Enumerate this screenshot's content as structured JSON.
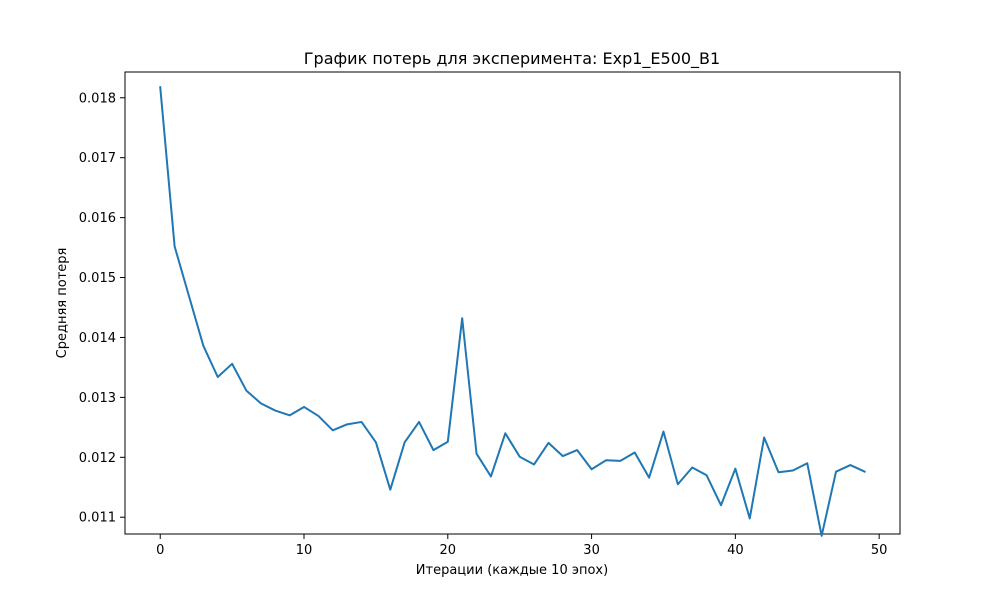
{
  "chart_data": {
    "type": "line",
    "title": "График потерь для эксперимента: Exp1_E500_B1",
    "xlabel": "Итерации (каждые 10 эпох)",
    "ylabel": "Средняя потеря",
    "xlim": [
      -2.45,
      51.45
    ],
    "ylim": [
      0.01072,
      0.01843
    ],
    "x_ticks": [
      0,
      10,
      20,
      30,
      40,
      50
    ],
    "x_tick_labels": [
      "0",
      "10",
      "20",
      "30",
      "40",
      "50"
    ],
    "y_ticks": [
      0.011,
      0.012,
      0.013,
      0.014,
      0.015,
      0.016,
      0.017,
      0.018
    ],
    "y_tick_labels": [
      "0.011",
      "0.012",
      "0.013",
      "0.014",
      "0.015",
      "0.016",
      "0.017",
      "0.018"
    ],
    "grid": false,
    "series": [
      {
        "color": "#1f77b4",
        "x": [
          0,
          1,
          2,
          3,
          4,
          5,
          6,
          7,
          8,
          9,
          10,
          11,
          12,
          13,
          14,
          15,
          16,
          17,
          18,
          19,
          20,
          21,
          22,
          23,
          24,
          25,
          26,
          27,
          28,
          29,
          30,
          31,
          32,
          33,
          34,
          35,
          36,
          37,
          38,
          39,
          40,
          41,
          42,
          43,
          44,
          45,
          46,
          47,
          48,
          49
        ],
        "values": [
          0.01818,
          0.01552,
          0.01469,
          0.01386,
          0.01334,
          0.01356,
          0.01311,
          0.0129,
          0.01278,
          0.0127,
          0.01284,
          0.01269,
          0.01245,
          0.01255,
          0.01259,
          0.01225,
          0.01146,
          0.01225,
          0.01259,
          0.01212,
          0.01226,
          0.01432,
          0.01206,
          0.01168,
          0.0124,
          0.01201,
          0.01188,
          0.01224,
          0.01202,
          0.01212,
          0.0118,
          0.01195,
          0.01194,
          0.01208,
          0.01166,
          0.01243,
          0.01155,
          0.01183,
          0.0117,
          0.0112,
          0.01181,
          0.01098,
          0.01233,
          0.01175,
          0.01178,
          0.0119,
          0.01069,
          0.01176,
          0.01187,
          0.01176
        ]
      }
    ]
  }
}
